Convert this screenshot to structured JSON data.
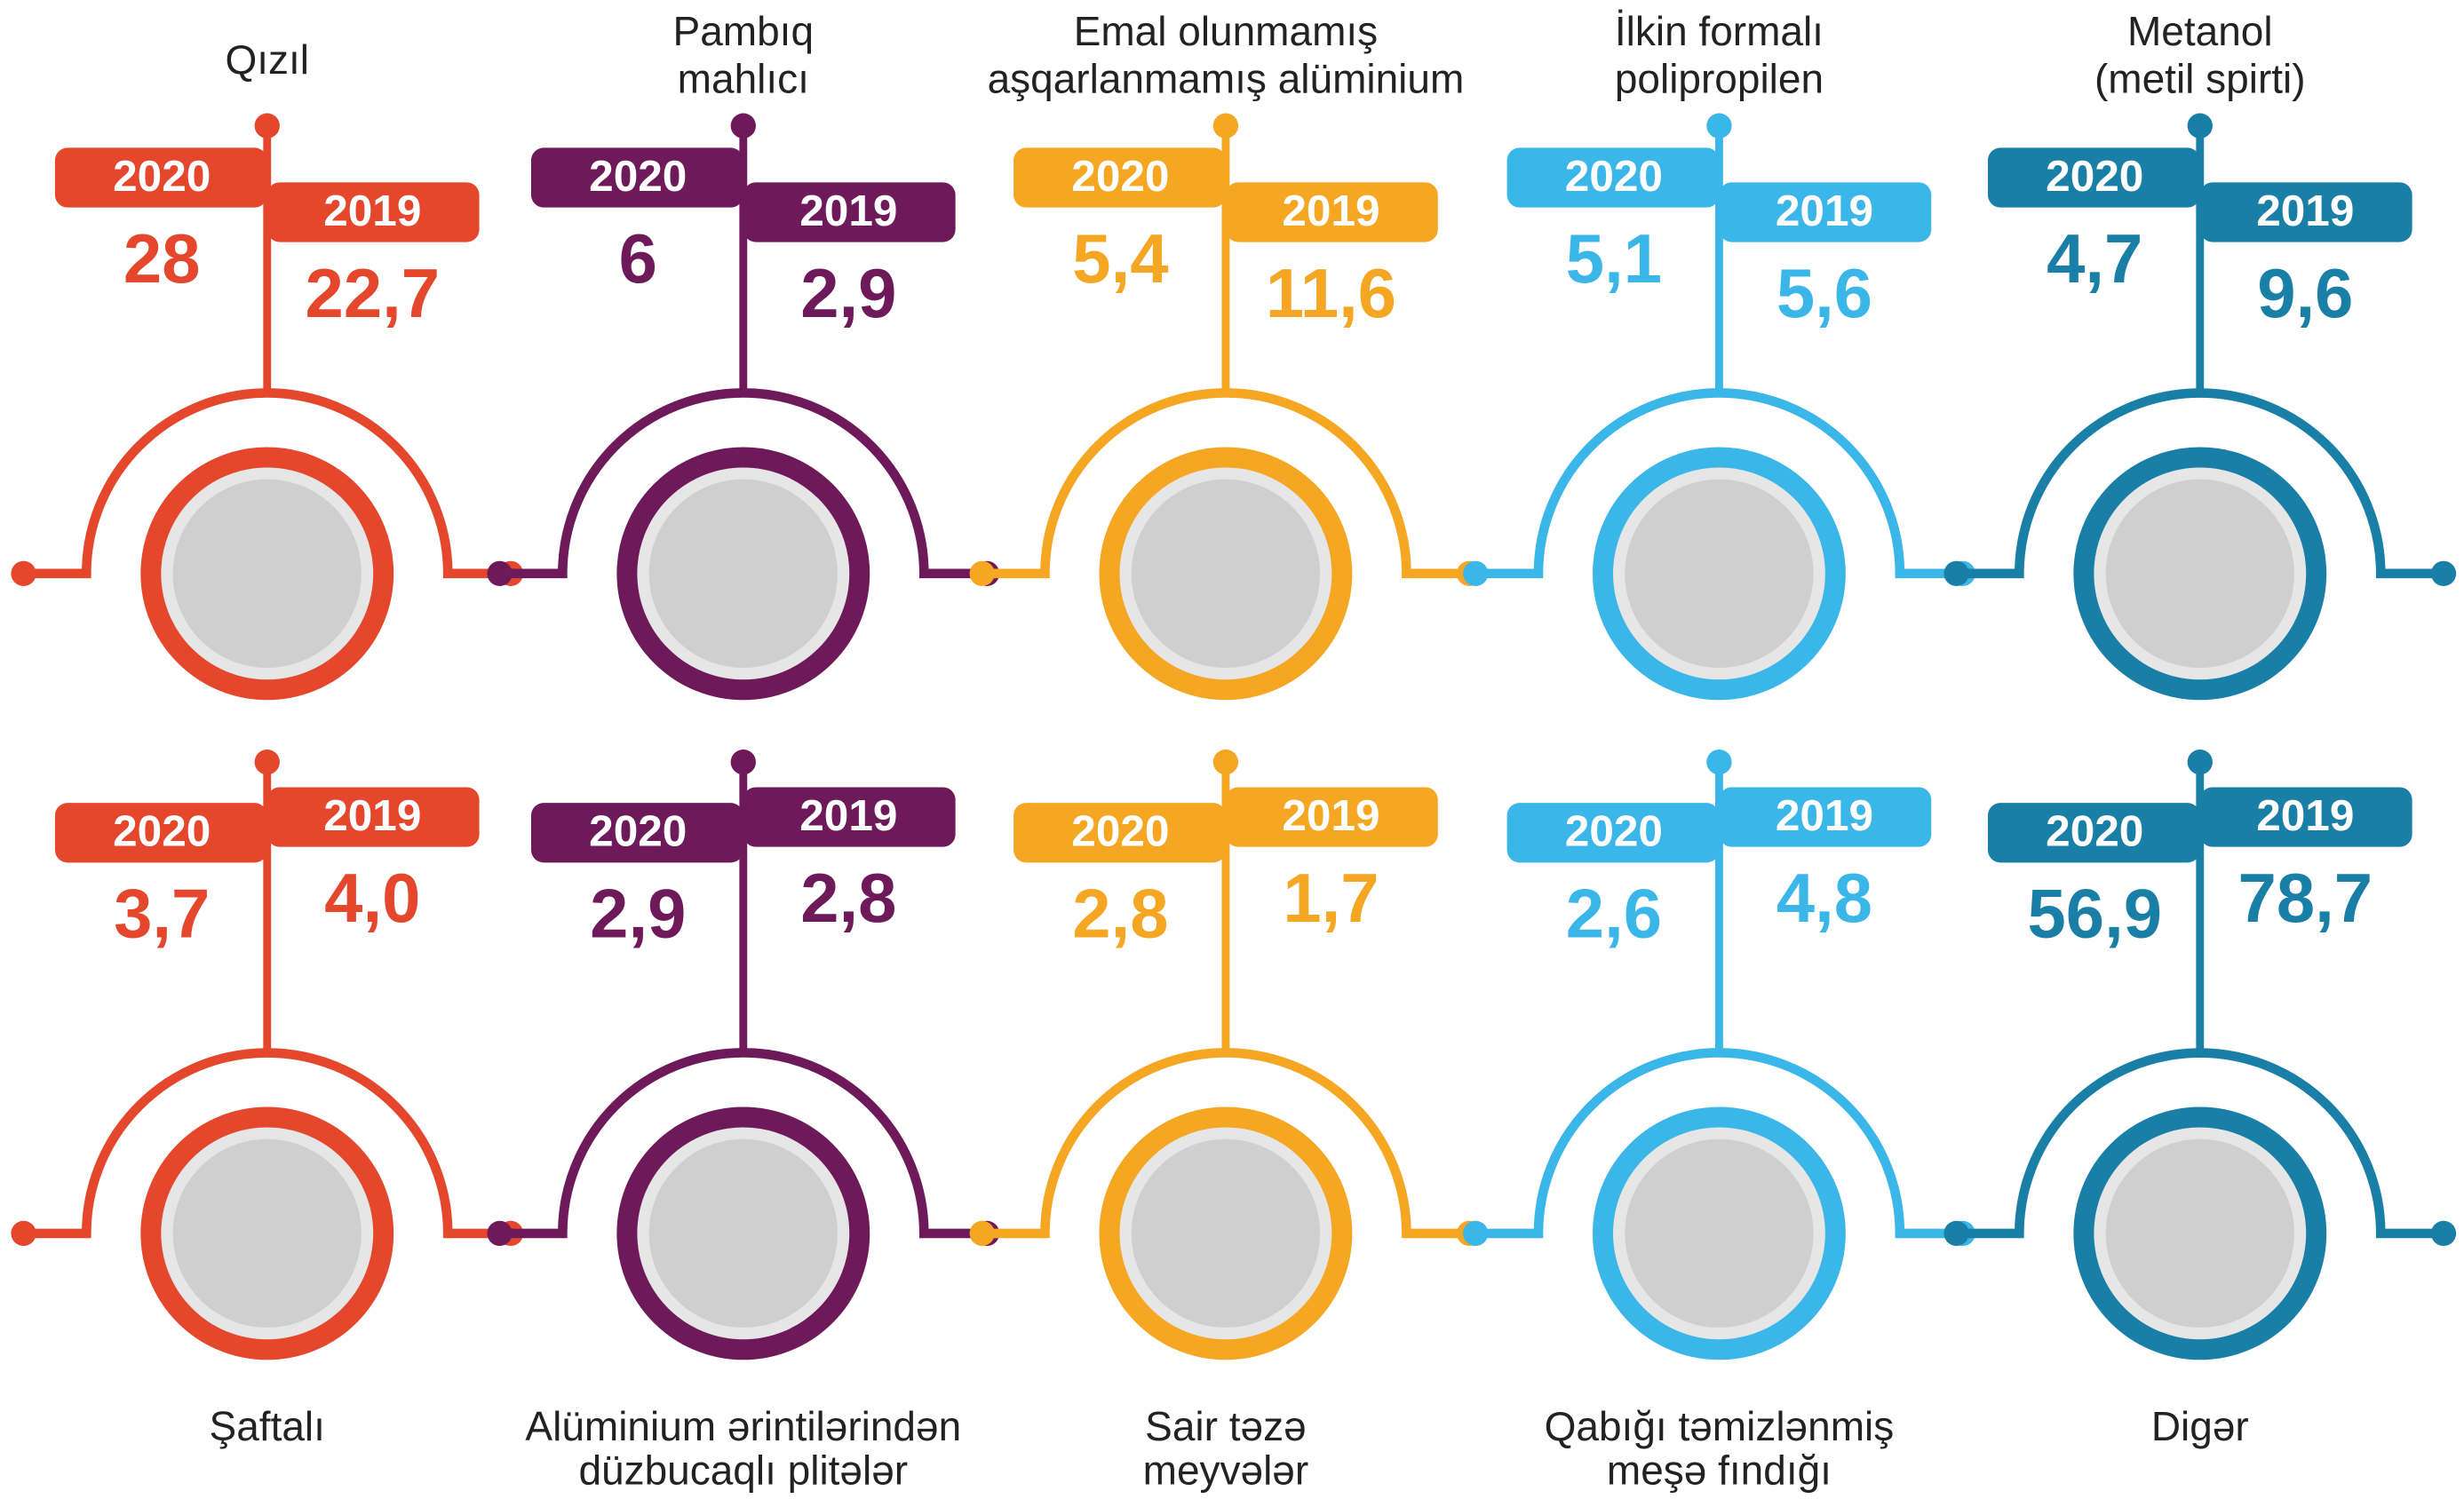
{
  "items": [
    {
      "label": [
        "Qızıl"
      ],
      "color": "#e4472c",
      "year_a": "2020",
      "value_a": "28",
      "year_b": "2019",
      "value_b": "22,7"
    },
    {
      "label": [
        "Pambıq",
        "mahlıcı"
      ],
      "color": "#6e1a5a",
      "year_a": "2020",
      "value_a": "6",
      "year_b": "2019",
      "value_b": "2,9"
    },
    {
      "label": [
        "Emal olunmamış",
        "aşqarlanmamış alüminium"
      ],
      "color": "#f5a623",
      "year_a": "2020",
      "value_a": "5,4",
      "year_b": "2019",
      "value_b": "11,6"
    },
    {
      "label": [
        "İlkin formalı",
        "polipropilen"
      ],
      "color": "#3bb6e8",
      "year_a": "2020",
      "value_a": "5,1",
      "year_b": "2019",
      "value_b": "5,6"
    },
    {
      "label": [
        "Metanol",
        "(metil spirti)"
      ],
      "color": "#1a7fa6",
      "year_a": "2020",
      "value_a": "4,7",
      "year_b": "2019",
      "value_b": "9,6"
    },
    {
      "label": [
        "Şaftalı"
      ],
      "color": "#e4472c",
      "year_a": "2020",
      "value_a": "3,7",
      "year_b": "2019",
      "value_b": "4,0"
    },
    {
      "label": [
        "Alüminium ərintilərindən",
        "düzbucaqlı plitələr"
      ],
      "color": "#6e1a5a",
      "year_a": "2020",
      "value_a": "2,9",
      "year_b": "2019",
      "value_b": "2,8"
    },
    {
      "label": [
        "Sair təzə",
        "meyvələr"
      ],
      "color": "#f5a623",
      "year_a": "2020",
      "value_a": "2,8",
      "year_b": "2019",
      "value_b": "1,7"
    },
    {
      "label": [
        "Qabığı təmizlənmiş",
        "meşə fındığı"
      ],
      "color": "#3bb6e8",
      "year_a": "2020",
      "value_a": "2,6",
      "year_b": "2019",
      "value_b": "4,8"
    },
    {
      "label": [
        "Digər"
      ],
      "color": "#1a7fa6",
      "year_a": "2020",
      "value_a": "56,9",
      "year_b": "2019",
      "value_b": "78,7"
    }
  ]
}
